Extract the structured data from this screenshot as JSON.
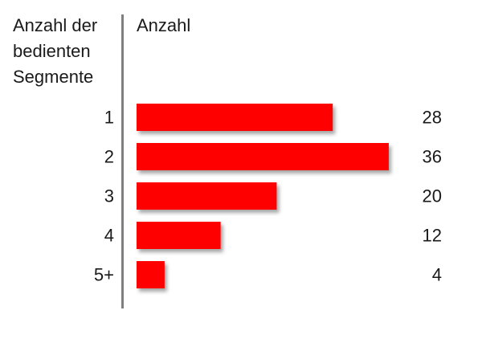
{
  "chart_data": {
    "type": "bar",
    "orientation": "horizontal",
    "category_header": [
      "Anzahl der",
      "bedienten",
      "Segmente"
    ],
    "value_header": "Anzahl",
    "categories": [
      "1",
      "2",
      "3",
      "4",
      "5+"
    ],
    "values": [
      28,
      36,
      20,
      12,
      4
    ],
    "data_labels": [
      "28",
      "36",
      "20",
      "12",
      "4"
    ],
    "bar_color": "#ff0000",
    "grid": false,
    "legend": "none"
  }
}
